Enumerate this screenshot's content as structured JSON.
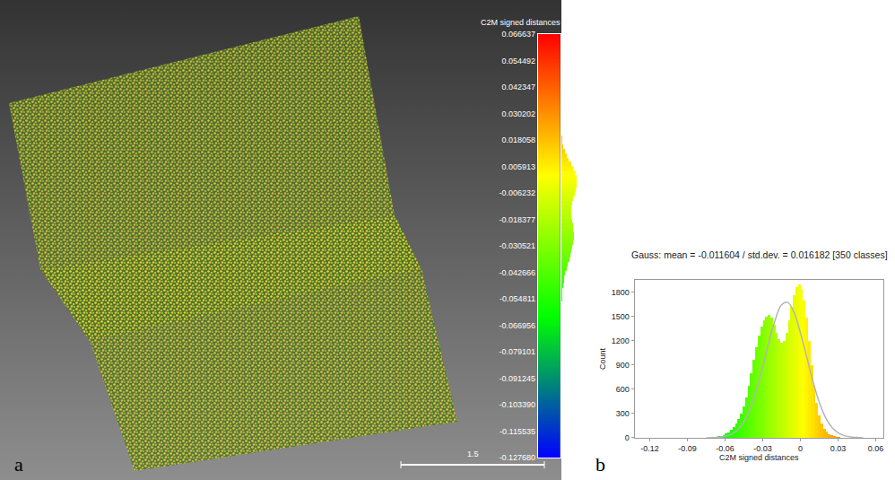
{
  "chart_data": [
    {
      "panel": "a",
      "type": "point_cloud",
      "colorbar": {
        "title": "C2M signed distances",
        "range": [
          -0.12768,
          0.066637
        ],
        "ticks": [
          0.066637,
          0.054492,
          0.042347,
          0.030202,
          0.018058,
          0.005913,
          -0.006232,
          -0.018377,
          -0.030521,
          -0.042666,
          -0.054811,
          -0.066956,
          -0.079101,
          -0.091245,
          {
            "value": -0.10339,
            "label": "-0.103390"
          },
          -0.115535,
          {
            "value": -0.12768,
            "label": "-0.127680"
          }
        ],
        "colors": [
          "#0000ff",
          "#00ff00",
          "#ffff00",
          "#ff0000"
        ]
      },
      "scale_bar": "1.5"
    },
    {
      "panel": "b",
      "type": "histogram",
      "title": "Gauss: mean = -0.011604 / std.dev. = 0.016182 [350 classes]",
      "x_label": "C2M signed distances",
      "y_label": "Count",
      "bins": [
        -0.072,
        -0.07,
        -0.068,
        -0.066,
        -0.064,
        -0.062,
        -0.06,
        -0.058,
        -0.056,
        -0.054,
        -0.052,
        -0.05,
        -0.048,
        -0.046,
        -0.044,
        -0.042,
        -0.04,
        -0.038,
        -0.036,
        -0.034,
        -0.032,
        -0.03,
        -0.028,
        -0.026,
        -0.024,
        -0.022,
        -0.02,
        -0.018,
        -0.016,
        -0.014,
        -0.012,
        -0.01,
        -0.008,
        -0.006,
        -0.004,
        -0.002,
        0,
        0.002,
        0.004,
        0.006,
        0.008,
        0.01,
        0.012,
        0.014,
        0.016,
        0.018,
        0.02,
        0.022,
        0.024,
        0.026,
        0.028,
        0.03,
        0.032,
        0.034,
        0.036,
        0.038,
        0.04
      ],
      "counts": [
        5,
        8,
        12,
        18,
        25,
        35,
        50,
        70,
        95,
        130,
        175,
        230,
        300,
        390,
        500,
        640,
        800,
        960,
        1120,
        1260,
        1370,
        1450,
        1500,
        1520,
        1480,
        1400,
        1300,
        1220,
        1170,
        1200,
        1300,
        1450,
        1620,
        1760,
        1860,
        1890,
        1840,
        1700,
        1480,
        1200,
        900,
        640,
        430,
        280,
        180,
        115,
        75,
        48,
        30,
        20,
        13,
        8,
        5,
        3,
        2,
        1
      ],
      "gauss": {
        "color": "#b4b4b4",
        "line_style": "solid",
        "x": [
          -0.075,
          -0.07,
          -0.065,
          -0.06,
          -0.055,
          -0.05,
          -0.045,
          -0.04,
          -0.035,
          -0.03,
          -0.025,
          -0.02,
          -0.015,
          -0.01,
          -0.005,
          0,
          0.005,
          0.01,
          0.015,
          0.02,
          0.025,
          0.03,
          0.035,
          0.04,
          0.045,
          0.05
        ],
        "values": [
          1,
          3,
          7,
          19,
          46,
          100,
          201,
          365,
          597,
          875,
          1190,
          1460,
          1643,
          1672,
          1545,
          1295,
          1000,
          695,
          440,
          250,
          131,
          61,
          26,
          10,
          4,
          1
        ]
      },
      "xlim": [
        -0.132,
        0.066
      ],
      "xticks": [
        -0.12,
        -0.09,
        -0.06,
        -0.03,
        0,
        0.03,
        0.06
      ],
      "ylim": [
        0,
        1950
      ],
      "yticks": [
        0,
        300,
        600,
        900,
        1200,
        1500,
        1800
      ],
      "grid": false
    }
  ]
}
